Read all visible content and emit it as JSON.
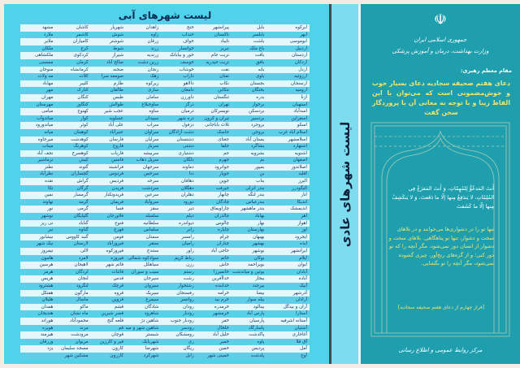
{
  "blue_list": {
    "title": "لیست شهرهای آبی",
    "columns": [
      [
        "ابرکوه",
        "ابهر",
        "ابوموسی",
        "اردبیل",
        "اردستان",
        "اردکان",
        "اردل",
        "ارزوئیه",
        "ارسنجان",
        "ارومیه",
        "ازنا",
        "استهبان",
        "اسدآباد",
        "اسفراین",
        "اسکو",
        "اسلام آباد غرب",
        "اسلامشهر",
        "اشتهارد",
        "اشنویه",
        "اصفهان",
        "اصلاندوز",
        "اقلید",
        "البرز",
        "الیگودرز",
        "انار",
        "اندیکا",
        "اندیمشک",
        "اهر",
        "اهواز",
        "اوز",
        "ایجرود",
        "ایذه",
        "ایرانشهر",
        "ایلام",
        "ایوان",
        "آبادان",
        "آباده",
        "آبیک",
        "آذرشهر",
        "آرادان",
        "آران و بیدگل",
        "آستارا",
        "آستانه اشرفیه",
        "آشتیان",
        "آغاجاری",
        "آق قلا",
        "آمل",
        "آوج"
      ],
      [
        "بابل",
        "بابلسر",
        "باشت",
        "باغ ملک",
        "بافت",
        "بافق",
        "بانه",
        "باوی",
        "بجستان",
        "بختگان",
        "بدره",
        "برخوار",
        "بردسکن",
        "بردسیر",
        "بروجرد",
        "بروجن",
        "بستان آباد",
        "بشاگرد",
        "بشرویه",
        "بم",
        "بمپور",
        "بن",
        "بناب",
        "بندر انزلی",
        "بندر لنگه",
        "بندرعباس",
        "بندر ماهشهر",
        "بهاباد",
        "بهار",
        "بهارستان",
        "بهبهان",
        "بهشهر",
        "بوشهر",
        "بوکان",
        "بویراحمد",
        "بوئین و میاندشت",
        "بیجار",
        "بیرجند",
        "بیضا",
        "بیله سوار",
        "بینالود",
        "پارس آباد",
        "پارسیان",
        "پاسارگاد",
        "پاکدشت",
        "پاوه",
        "پردیس",
        "پلدشت"
      ],
      [
        "پیرانشهر",
        "تاکستان",
        "تایباد",
        "تبریز",
        "تربت جام",
        "تربت حیدریه",
        "تفت",
        "تفتان",
        "تکاب",
        "تنکابن",
        "تنگستان",
        "تهران",
        "تویسرکان",
        "تیران و کرون",
        "ثلاث باباجانی",
        "جاسک",
        "جغتای",
        "جلفا",
        "جم",
        "جهرم",
        "جوانرود",
        "جوپار",
        "جوین",
        "جیرفت",
        "چابهار",
        "چادگان",
        "چاراویماق",
        "چالدران",
        "چالوس",
        "چاپاره",
        "چرام",
        "چناران",
        "حاجی آباد",
        "خاتم",
        "خاش",
        "خانمیرزا",
        "خداآفرین",
        "خدابنده",
        "خرامه",
        "خرم بید",
        "خرمدره",
        "خرمشهر",
        "خفر",
        "خلخال",
        "خلیل آباد",
        "خمیر",
        "خمین",
        "خمینی شهر"
      ],
      [
        "خنج",
        "خنداب",
        "خواف",
        "خوانسار",
        "خور و بیابانک",
        "خوسف",
        "خوشاب",
        "داراب",
        "دالاهو",
        "دامغان",
        "داورزن",
        "درگز",
        "درمیان",
        "دره شهر",
        "دزفول",
        "دشت آزادگان",
        "دشتستان",
        "دشتی",
        "دشتیاری",
        "دلگان",
        "دماوند",
        "دنا",
        "دهاقان",
        "دهگلان",
        "دهلران",
        "دورود",
        "دیر",
        "دیلم",
        "دیواندره",
        "رابر",
        "رامسر",
        "رامیان",
        "راور",
        "رباط کریم",
        "رزن",
        "رستم",
        "رشت",
        "رشتخوار",
        "رفسنجان",
        "روانسر",
        "رودان",
        "رودبار",
        "رودبار جنوب",
        "رودسر",
        "رومشکان",
        "ری",
        "ریگان",
        "زابل"
      ],
      [
        "زاهدان",
        "زاوه",
        "زرقان",
        "زرند",
        "زرندیه",
        "زرین دشت",
        "زنجان",
        "زهک",
        "زیرکوه",
        "ساری",
        "سامان",
        "ساوجبلاغ",
        "ساوه",
        "سپیدان",
        "سراب",
        "سراوان",
        "سرایان",
        "سرباز",
        "سربیشه",
        "سرپل ذهاب",
        "سرجهان",
        "سرخس",
        "سرخه",
        "سردشت",
        "سرعین",
        "سروآباد",
        "سقز",
        "سلسله",
        "سلطانیه",
        "سلماس",
        "سمنان",
        "سنقر",
        "سنندج",
        "سوادکوه شمالی",
        "سیاهکل",
        "سیب و سوران",
        "سیرجان",
        "سیروان",
        "سیریک",
        "سیمرغ",
        "شادگان",
        "شاهرود",
        "شاهین دژ",
        "شاهین شهر و میمه",
        "شبستر",
        "شهربابک",
        "شهرضا",
        "شهرکرد"
      ],
      [
        "شهریار",
        "شوش",
        "شوشتر",
        "شوط",
        "شیراز",
        "صالح آباد",
        "صحنه",
        "صومعه سرا",
        "طارم",
        "طالقان",
        "طبس",
        "طوالش",
        "عجب شیر",
        "عسلویه",
        "علی آباد",
        "عنبرآباد",
        "فارسان",
        "فاروج",
        "فاریاب",
        "فامنین",
        "فراشبند",
        "فردوس",
        "فردیس",
        "فریدن",
        "فریدونکنار",
        "فریمان",
        "فسا",
        "فلاورجان",
        "فنوج",
        "فهرج",
        "فومن",
        "فیروزآباد",
        "فیروزکوه",
        "فیروزه",
        "قائم شهر",
        "قائنات",
        "قدس",
        "قرچک",
        "قروه",
        "قزوین",
        "قشم",
        "قصر شیرین",
        "قلعه گنج",
        "قم",
        "قوچان",
        "قیر و کارزین",
        "کارون",
        "کازرون"
      ],
      [
        "کاشان",
        "کاشمر",
        "کامیاران",
        "کرج",
        "کردکوی",
        "کرمان",
        "کرمانشاه",
        "کلات",
        "کلیبر",
        "کنارک",
        "کنگان",
        "کنگاور",
        "کهنوج",
        "کوار",
        "کوثر",
        "کوهبنان",
        "کوهدشت",
        "کوهرنگ",
        "کوهسرخ",
        "کیش",
        "گتوند",
        "گچساران",
        "گراش",
        "گرگان",
        "گرمسار",
        "گرمه",
        "گرمی",
        "گلپایگان",
        "گناباد",
        "گناوه",
        "گنبد کاووس",
        "لارستان",
        "لالی",
        "لامرد",
        "لاهیجان",
        "لردگان",
        "لنجان",
        "لنگرود",
        "مارگون",
        "ماسال",
        "ماکو",
        "ماه نشان",
        "محمودآباد",
        "مرند",
        "مرودشت",
        "مریوان",
        "مسجد سلیمان",
        "مشکین شهر"
      ],
      [
        "مشهد",
        "ملارد",
        "ملایر",
        "ملکان",
        "ملکشاهی",
        "ممسنی",
        "منوجان",
        "مه ولات",
        "مهاباد",
        "مهر",
        "مهران",
        "مهرستان",
        "میامی",
        "میاندوآب",
        "میاندورود",
        "میانه",
        "میرجاوه",
        "میناب",
        "نجف آباد",
        "نرماشیر",
        "نطنز",
        "نظرآباد",
        "نقده",
        "نکا",
        "نمین",
        "نهاوند",
        "نور",
        "نوشهر",
        "نی ریز",
        "نیر",
        "نیشابور",
        "نیک شهر",
        "نیمروز",
        "هامون",
        "هرسین",
        "هرمز",
        "هریس",
        "هشترود",
        "هفتکل",
        "هلیلان",
        "همدان",
        "هندیجان",
        "هوراند",
        "هویزه",
        "هیرمند",
        "ورزقان",
        "یزد",
        ""
      ]
    ]
  },
  "normal_list": {
    "title": "لیست شهرهای عادی"
  },
  "poster": {
    "country": "جمهوری اسلامی ایران",
    "ministry": "وزارت بهداشت، درمان و آموزش پزشکی",
    "leader_label": "مقام معظم رهبری:",
    "quote": "دعای هفتم صحیفه سجادیه دعای بسیار خوب و خوش‌مضمونی است که می‌توان با این الفاظ زیبا و با توجه به معانی آن با پروردگار سخن گفت",
    "arabic": "أَنتَ المَدعُوُّ لِلمُهِمّاتِ، وَ أَنتَ المَفزَعُ فِي المُلِمّاتِ، لا يَندَفِعُ مِنها إلّا ما دَفَعتَ، وَ لا يَنكَشِفُ مِنها إلّا ما كَشَفتَ",
    "translation": "تنها تو را در دشواری‌ها می‌خوانند و در بلاهای سخت و دشوار، تنها تو پناهگاهی. بلاهای سخت و دشوار از انسان دور نمی‌شود، مگر آنچه را که تو دور کنی؛ و از گره‌های رنج‌آور، چیزی گشوده نمی‌شود، مگر آنچه را تو بگشایی.",
    "reference": "[فراز چهارم از دعای هفتم صحیفه سجادیه]",
    "footer": "مرکز روابط عمومی و اطلاع رسانی",
    "emblem_icon": "iran-emblem-icon"
  },
  "colors": {
    "panel": "#1f9fae",
    "list_bg": "#4fd2ea",
    "highlight_text": "#f3e66a"
  }
}
